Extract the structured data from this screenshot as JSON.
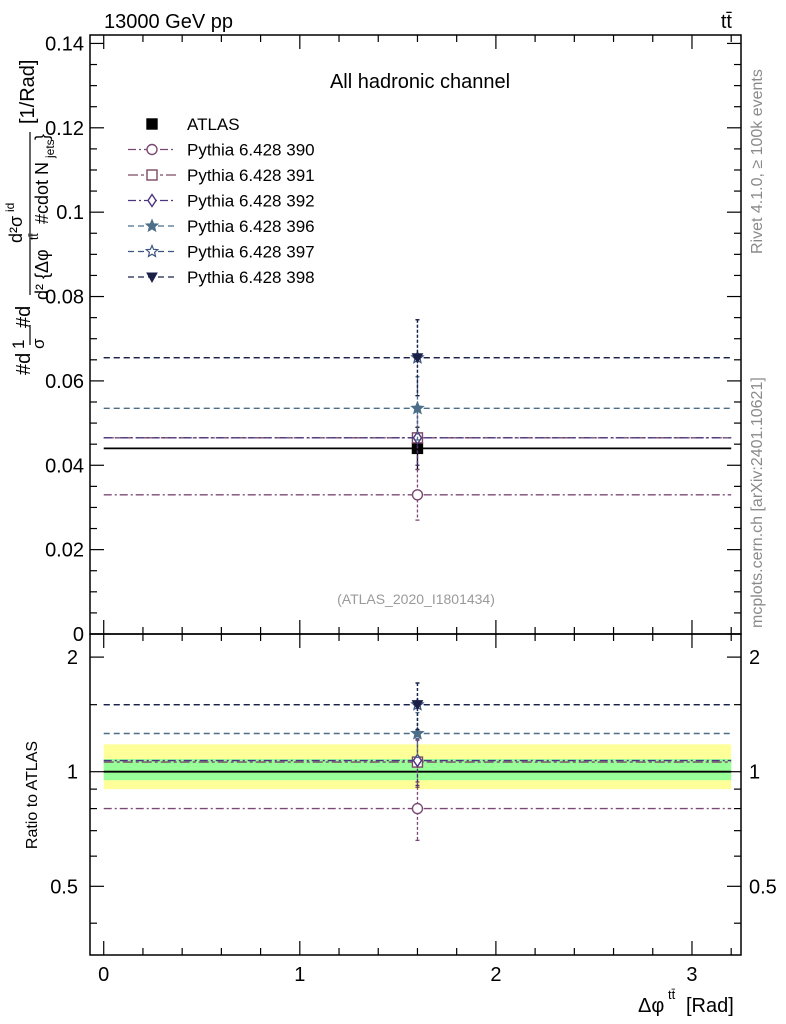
{
  "header": {
    "energy_label": "13000 GeV pp",
    "process_label": "tt̄"
  },
  "side_labels": {
    "rivet": "Rivet 4.1.0, ≥ 100k events",
    "mcplots": "mcplots.cern.ch [arXiv:2401.10621]"
  },
  "chart_data": [
    {
      "type": "scatter",
      "panel": "main",
      "title": "All hadronic channel",
      "analysis_label": "(ATLAS_2020_I1801434)",
      "xlabel": "Δφ^{t t̄} [Rad]",
      "ylabel": "#d¹/σ#d d²σ^{id} / d²{Δφ^{tt̄} #cdot N_jets} [1/Rad]",
      "xlim": [
        -0.07,
        3.25
      ],
      "ylim": [
        0,
        0.142
      ],
      "yticks": [
        {
          "value": 0,
          "label": "0"
        },
        {
          "value": 0.02,
          "label": "0.02"
        },
        {
          "value": 0.04,
          "label": "0.04"
        },
        {
          "value": 0.06,
          "label": "0.06"
        },
        {
          "value": 0.08,
          "label": "0.08"
        },
        {
          "value": 0.1,
          "label": "0.1"
        },
        {
          "value": 0.12,
          "label": "0.12"
        },
        {
          "value": 0.14,
          "label": "0.14"
        }
      ],
      "legend_position": "top-left",
      "bin": {
        "x_low": 0,
        "x_high": 3.2,
        "x_center": 1.6
      },
      "series": [
        {
          "name": "ATLAS",
          "marker": "filled-square",
          "color": "#000000",
          "dash": "solid",
          "y": 0.044,
          "err": 0.005
        },
        {
          "name": "Pythia 6.428 390",
          "marker": "open-circle",
          "color": "#7b4a74",
          "dash": "dashdot",
          "y": 0.033,
          "err": 0.006
        },
        {
          "name": "Pythia 6.428 391",
          "marker": "open-square",
          "color": "#7b4a62",
          "dash": "dashdotlong",
          "y": 0.0465,
          "err": 0.0065
        },
        {
          "name": "Pythia 6.428 392",
          "marker": "open-diamond",
          "color": "#4b3580",
          "dash": "dashdot",
          "y": 0.0465,
          "err": 0.0065
        },
        {
          "name": "Pythia 6.428 396",
          "marker": "filled-star",
          "color": "#4c6e88",
          "dash": "dashed",
          "y": 0.0535,
          "err": 0.0075
        },
        {
          "name": "Pythia 6.428 397",
          "marker": "open-star",
          "color": "#3b5580",
          "dash": "dashed",
          "y": 0.0655,
          "err": 0.009
        },
        {
          "name": "Pythia 6.428 398",
          "marker": "filled-triangle-down",
          "color": "#1a2048",
          "dash": "dashed",
          "y": 0.0655,
          "err": 0.009
        }
      ]
    },
    {
      "type": "scatter",
      "panel": "ratio",
      "ylabel": "Ratio to ATLAS",
      "xlabel": "Δφ^{t t̄} [Rad]",
      "xlim": [
        -0.07,
        3.25
      ],
      "ylim": [
        0.33,
        2.3
      ],
      "xticks": [
        {
          "value": 0,
          "label": "0"
        },
        {
          "value": 1,
          "label": "1"
        },
        {
          "value": 2,
          "label": "2"
        },
        {
          "value": 3,
          "label": "3"
        }
      ],
      "yticks": [
        {
          "value": 0.5,
          "label": "0.5"
        },
        {
          "value": 1,
          "label": "1"
        },
        {
          "value": 2,
          "label": "2"
        }
      ],
      "bands": [
        {
          "name": "syst",
          "low": 0.9,
          "high": 1.18,
          "color": "#ffff99"
        },
        {
          "name": "stat",
          "low": 0.95,
          "high": 1.08,
          "color": "#99ff99"
        }
      ],
      "series": [
        {
          "name": "ATLAS",
          "color": "#000000",
          "dash": "solid",
          "marker": "none",
          "y": 1.0,
          "err": 0
        },
        {
          "name": "Pythia 6.428 390",
          "color": "#7b4a74",
          "dash": "dashdot",
          "marker": "open-circle",
          "y": 0.8,
          "err": 0.14
        },
        {
          "name": "Pythia 6.428 391",
          "color": "#7b4a62",
          "dash": "dashdotlong",
          "marker": "open-square",
          "y": 1.06,
          "err": 0.15
        },
        {
          "name": "Pythia 6.428 392",
          "color": "#4b3580",
          "dash": "dashdot",
          "marker": "open-diamond",
          "y": 1.07,
          "err": 0.15
        },
        {
          "name": "Pythia 6.428 396",
          "color": "#4c6e88",
          "dash": "dashed",
          "marker": "filled-star",
          "y": 1.26,
          "err": 0.17
        },
        {
          "name": "Pythia 6.428 397",
          "color": "#3b5580",
          "dash": "dashed",
          "marker": "open-star",
          "y": 1.5,
          "err": 0.21
        },
        {
          "name": "Pythia 6.428 398",
          "color": "#1a2048",
          "dash": "dashed",
          "marker": "filled-triangle-down",
          "y": 1.5,
          "err": 0.21
        }
      ]
    }
  ]
}
